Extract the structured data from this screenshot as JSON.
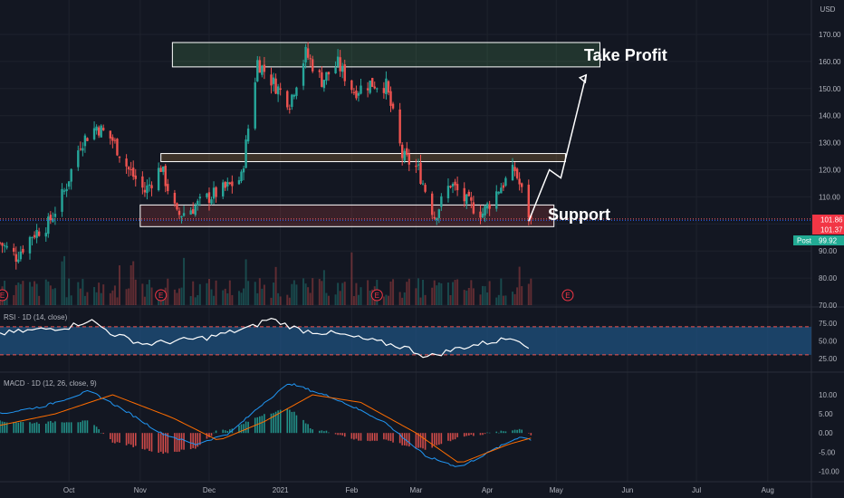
{
  "price_axis": {
    "currency": "USD",
    "ticks": [
      "170.00",
      "160.00",
      "150.00",
      "140.00",
      "130.00",
      "120.00",
      "110.00",
      "100.00",
      "90.00",
      "80.00",
      "70.00"
    ],
    "badges": [
      {
        "text": "101.86",
        "color": "#f23645"
      },
      {
        "text": "101.37",
        "color": "#f23645"
      }
    ],
    "post_label": "Post",
    "post_value": "99.92",
    "post_color": "#22ab94"
  },
  "rsi": {
    "label": "RSI · 1D (14, close)",
    "ticks": [
      "75.00",
      "50.00",
      "25.00"
    ],
    "band_color": "#1e4e79"
  },
  "macd": {
    "label": "MACD · 1D (12, 26, close, 9)",
    "ticks": [
      "10.00",
      "5.00",
      "0.00",
      "-5.00",
      "-10.00"
    ]
  },
  "time_axis": [
    "Oct",
    "Nov",
    "Dec",
    "2021",
    "Feb",
    "Mar",
    "Apr",
    "May",
    "Jun",
    "Jul",
    "Aug"
  ],
  "annotations": {
    "take_profit": "Take Profit",
    "support": "Support",
    "earnings_marker": "E"
  },
  "colors": {
    "up": "#26a69a",
    "down": "#ef5350",
    "macd_line": "#2196f3",
    "signal_line": "#ff6d00"
  },
  "chart_data": {
    "type": "candlestick",
    "x_range": [
      "2020-09-01",
      "2021-08-20"
    ],
    "y_range": [
      70,
      175
    ],
    "zones": [
      {
        "name": "take-profit-zone",
        "y_low": 158,
        "y_high": 167,
        "x_start": "2020-11-15",
        "x_end": "2021-05-20",
        "color": "#66bb6a"
      },
      {
        "name": "resistance-zone",
        "y_low": 123,
        "y_high": 126,
        "x_start": "2020-11-10",
        "x_end": "2021-05-05",
        "color": "#ffb74d"
      },
      {
        "name": "support-zone",
        "y_low": 99,
        "y_high": 107,
        "x_start": "2020-11-01",
        "x_end": "2021-04-30",
        "color": "#ef5350"
      }
    ],
    "projection_path": [
      {
        "date": "2021-04-19",
        "value": 101
      },
      {
        "date": "2021-04-28",
        "value": 120
      },
      {
        "date": "2021-05-03",
        "value": 117
      },
      {
        "date": "2021-05-14",
        "value": 155
      }
    ],
    "price_path": [
      {
        "date": "2020-09-01",
        "value": 93
      },
      {
        "date": "2020-09-08",
        "value": 88
      },
      {
        "date": "2020-09-15",
        "value": 96
      },
      {
        "date": "2020-09-22",
        "value": 100
      },
      {
        "date": "2020-09-29",
        "value": 112
      },
      {
        "date": "2020-10-06",
        "value": 130
      },
      {
        "date": "2020-10-13",
        "value": 136
      },
      {
        "date": "2020-10-20",
        "value": 131
      },
      {
        "date": "2020-10-27",
        "value": 120
      },
      {
        "date": "2020-11-03",
        "value": 112
      },
      {
        "date": "2020-11-10",
        "value": 121
      },
      {
        "date": "2020-11-17",
        "value": 103
      },
      {
        "date": "2020-11-24",
        "value": 106
      },
      {
        "date": "2020-12-01",
        "value": 110
      },
      {
        "date": "2020-12-08",
        "value": 113
      },
      {
        "date": "2020-12-15",
        "value": 117
      },
      {
        "date": "2020-12-22",
        "value": 160
      },
      {
        "date": "2020-12-29",
        "value": 152
      },
      {
        "date": "2021-01-05",
        "value": 145
      },
      {
        "date": "2021-01-12",
        "value": 163
      },
      {
        "date": "2021-01-19",
        "value": 153
      },
      {
        "date": "2021-01-26",
        "value": 159
      },
      {
        "date": "2021-02-02",
        "value": 149
      },
      {
        "date": "2021-02-09",
        "value": 152
      },
      {
        "date": "2021-02-16",
        "value": 151
      },
      {
        "date": "2021-02-23",
        "value": 125
      },
      {
        "date": "2021-03-02",
        "value": 120
      },
      {
        "date": "2021-03-09",
        "value": 103
      },
      {
        "date": "2021-03-16",
        "value": 115
      },
      {
        "date": "2021-03-23",
        "value": 108
      },
      {
        "date": "2021-03-30",
        "value": 104
      },
      {
        "date": "2021-04-06",
        "value": 113
      },
      {
        "date": "2021-04-13",
        "value": 120
      },
      {
        "date": "2021-04-20",
        "value": 101
      }
    ],
    "rsi_path": [
      {
        "date": "2020-09-01",
        "value": 60
      },
      {
        "date": "2020-09-15",
        "value": 65
      },
      {
        "date": "2020-10-01",
        "value": 70
      },
      {
        "date": "2020-10-10",
        "value": 80
      },
      {
        "date": "2020-10-20",
        "value": 60
      },
      {
        "date": "2020-11-03",
        "value": 45
      },
      {
        "date": "2020-11-17",
        "value": 50
      },
      {
        "date": "2020-12-01",
        "value": 55
      },
      {
        "date": "2020-12-20",
        "value": 70
      },
      {
        "date": "2020-12-27",
        "value": 82
      },
      {
        "date": "2021-01-10",
        "value": 65
      },
      {
        "date": "2021-01-25",
        "value": 60
      },
      {
        "date": "2021-02-10",
        "value": 50
      },
      {
        "date": "2021-02-25",
        "value": 40
      },
      {
        "date": "2021-03-06",
        "value": 27
      },
      {
        "date": "2021-03-20",
        "value": 40
      },
      {
        "date": "2021-04-05",
        "value": 50
      },
      {
        "date": "2021-04-13",
        "value": 55
      },
      {
        "date": "2021-04-22",
        "value": 37
      }
    ],
    "macd_path": [
      {
        "date": "2020-09-01",
        "value": 5
      },
      {
        "date": "2020-09-20",
        "value": 7
      },
      {
        "date": "2020-10-10",
        "value": 11
      },
      {
        "date": "2020-10-25",
        "value": 6
      },
      {
        "date": "2020-11-10",
        "value": 0
      },
      {
        "date": "2020-11-25",
        "value": -3
      },
      {
        "date": "2020-12-10",
        "value": 0
      },
      {
        "date": "2020-12-25",
        "value": 8
      },
      {
        "date": "2021-01-05",
        "value": 13
      },
      {
        "date": "2021-01-25",
        "value": 9
      },
      {
        "date": "2021-02-15",
        "value": 3
      },
      {
        "date": "2021-03-05",
        "value": -6
      },
      {
        "date": "2021-03-20",
        "value": -9
      },
      {
        "date": "2021-04-05",
        "value": -4
      },
      {
        "date": "2021-04-15",
        "value": -1
      },
      {
        "date": "2021-04-22",
        "value": -2
      }
    ],
    "signal_path": [
      {
        "date": "2020-09-01",
        "value": 2
      },
      {
        "date": "2020-09-25",
        "value": 5
      },
      {
        "date": "2020-10-20",
        "value": 10
      },
      {
        "date": "2020-11-15",
        "value": 4
      },
      {
        "date": "2020-12-05",
        "value": -2
      },
      {
        "date": "2020-12-25",
        "value": 3
      },
      {
        "date": "2021-01-15",
        "value": 10
      },
      {
        "date": "2021-02-05",
        "value": 8
      },
      {
        "date": "2021-03-01",
        "value": 0
      },
      {
        "date": "2021-03-20",
        "value": -8
      },
      {
        "date": "2021-04-10",
        "value": -3
      },
      {
        "date": "2021-04-22",
        "value": -1
      }
    ]
  }
}
